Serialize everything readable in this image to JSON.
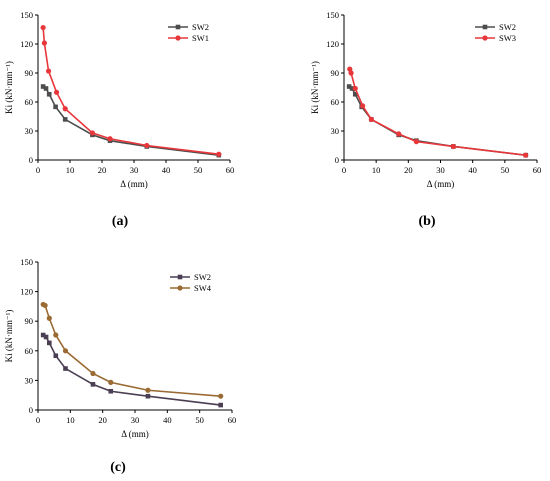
{
  "chart_data": [
    {
      "type": "line",
      "label": "(a)",
      "xlabel": "Δ (mm)",
      "ylabel": "Ki (kN·mm⁻¹)",
      "xlim": [
        0,
        60
      ],
      "ylim": [
        0,
        150
      ],
      "xticks": [
        0,
        10,
        20,
        30,
        40,
        50,
        60
      ],
      "yticks": [
        0,
        30,
        60,
        90,
        120,
        150
      ],
      "legend": "top-right",
      "grid": false,
      "series": [
        {
          "name": "SW2",
          "color": "#4d4d4d",
          "marker": "square",
          "x": [
            1.6,
            2.5,
            3.5,
            5.5,
            8.5,
            17,
            22.5,
            34,
            56.5
          ],
          "y": [
            76,
            74,
            68,
            55,
            42,
            26,
            20,
            14,
            5
          ]
        },
        {
          "name": "SW1",
          "color": "#e8373b",
          "marker": "circle",
          "x": [
            1.6,
            2.0,
            3.3,
            5.8,
            8.5,
            17,
            22.5,
            34,
            56.5
          ],
          "y": [
            137,
            121,
            92,
            70,
            53,
            28,
            22,
            15,
            6
          ]
        }
      ]
    },
    {
      "type": "line",
      "label": "(b)",
      "xlabel": "Δ (mm)",
      "ylabel": "Ki (kN·mm⁻¹)",
      "xlim": [
        0,
        60
      ],
      "ylim": [
        0,
        150
      ],
      "xticks": [
        0,
        10,
        20,
        30,
        40,
        50,
        60
      ],
      "yticks": [
        0,
        30,
        60,
        90,
        120,
        150
      ],
      "legend": "top-right",
      "grid": false,
      "series": [
        {
          "name": "SW2",
          "color": "#4d4d4d",
          "marker": "square",
          "x": [
            1.6,
            2.5,
            3.5,
            5.5,
            8.5,
            17,
            22.5,
            34,
            56.5
          ],
          "y": [
            76,
            74,
            68,
            55,
            42,
            26,
            20,
            14,
            5
          ]
        },
        {
          "name": "SW3",
          "color": "#e8373b",
          "marker": "circle",
          "x": [
            1.8,
            2.2,
            3.5,
            5.8,
            8.5,
            17,
            22.5,
            34,
            56.5
          ],
          "y": [
            94,
            90,
            74,
            56,
            42,
            27,
            19,
            14,
            5
          ]
        }
      ]
    },
    {
      "type": "line",
      "label": "(c)",
      "xlabel": "Δ (mm)",
      "ylabel": "Ki (kN·mm⁻¹)",
      "xlim": [
        0,
        60
      ],
      "ylim": [
        0,
        150
      ],
      "xticks": [
        0,
        10,
        20,
        30,
        40,
        50,
        60
      ],
      "yticks": [
        0,
        30,
        60,
        90,
        120,
        150
      ],
      "legend": "top-right",
      "grid": false,
      "series": [
        {
          "name": "SW2",
          "color": "#4a3f52",
          "marker": "square",
          "x": [
            1.6,
            2.5,
            3.5,
            5.5,
            8.5,
            17,
            22.5,
            34,
            56.5
          ],
          "y": [
            76,
            74,
            68,
            55,
            42,
            26,
            19,
            14,
            5
          ]
        },
        {
          "name": "SW4",
          "color": "#9a6a33",
          "marker": "circle",
          "x": [
            1.6,
            2.2,
            3.5,
            5.5,
            8.5,
            17,
            22.5,
            34,
            56.5
          ],
          "y": [
            107,
            106,
            93,
            76,
            60,
            37,
            28,
            20,
            14
          ]
        }
      ]
    }
  ]
}
